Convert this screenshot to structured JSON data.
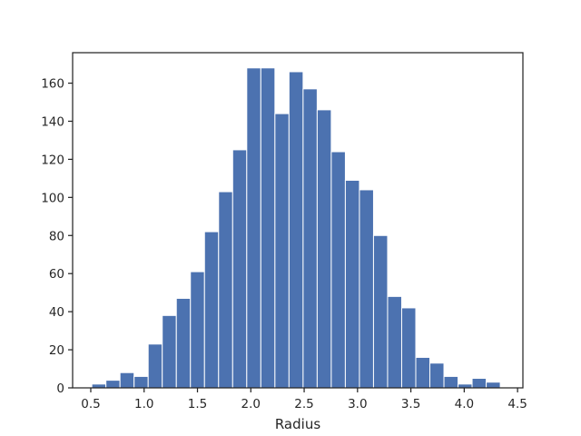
{
  "chart_data": {
    "type": "bar",
    "subtype": "histogram",
    "title": "",
    "xlabel": "Radius",
    "ylabel": "",
    "xlim": [
      0.33,
      4.55
    ],
    "ylim": [
      0,
      176
    ],
    "bin_edges": [
      0.51,
      0.642,
      0.774,
      0.906,
      1.038,
      1.17,
      1.302,
      1.434,
      1.566,
      1.698,
      1.83,
      1.962,
      2.094,
      2.226,
      2.358,
      2.49,
      2.622,
      2.754,
      2.886,
      3.018,
      3.15,
      3.282,
      3.414,
      3.546,
      3.678,
      3.81,
      3.942,
      4.074,
      4.206,
      4.338
    ],
    "values": [
      2,
      4,
      8,
      6,
      23,
      38,
      47,
      61,
      82,
      103,
      125,
      168,
      168,
      144,
      166,
      157,
      146,
      124,
      109,
      104,
      80,
      48,
      42,
      16,
      13,
      6,
      2,
      5,
      3
    ],
    "xticks": [
      0.5,
      1.0,
      1.5,
      2.0,
      2.5,
      3.0,
      3.5,
      4.0,
      4.5
    ],
    "xtick_labels": [
      "0.5",
      "1.0",
      "1.5",
      "2.0",
      "2.5",
      "3.0",
      "3.5",
      "4.0",
      "4.5"
    ],
    "yticks": [
      0,
      20,
      40,
      60,
      80,
      100,
      120,
      140,
      160
    ],
    "ytick_labels": [
      "0",
      "20",
      "40",
      "60",
      "80",
      "100",
      "120",
      "140",
      "160"
    ],
    "grid": false,
    "legend": "none",
    "bar_color": "#4c72b0",
    "bar_edge_color": "#ffffff"
  }
}
